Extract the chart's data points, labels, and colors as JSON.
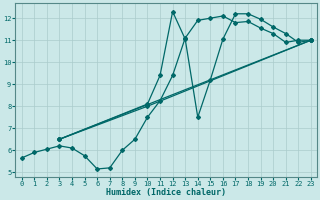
{
  "xlabel": "Humidex (Indice chaleur)",
  "bg_color": "#cbe8e8",
  "grid_color": "#aacccc",
  "line_color": "#006868",
  "xlim": [
    -0.5,
    23.5
  ],
  "ylim": [
    4.8,
    12.7
  ],
  "xticks": [
    0,
    1,
    2,
    3,
    4,
    5,
    6,
    7,
    8,
    9,
    10,
    11,
    12,
    13,
    14,
    15,
    16,
    17,
    18,
    19,
    20,
    21,
    22,
    23
  ],
  "yticks": [
    5,
    6,
    7,
    8,
    9,
    10,
    11,
    12
  ],
  "line1_x": [
    0,
    1,
    2,
    3,
    4,
    5,
    6,
    7,
    8,
    9,
    10,
    11,
    12,
    13,
    14,
    15,
    16,
    17,
    18,
    19,
    20,
    21,
    22,
    23
  ],
  "line1_y": [
    5.65,
    5.9,
    6.05,
    6.2,
    6.1,
    5.75,
    5.15,
    5.2,
    6.0,
    6.5,
    7.5,
    8.25,
    9.4,
    11.1,
    11.9,
    12.0,
    12.1,
    11.8,
    11.85,
    11.55,
    11.3,
    10.9,
    11.0,
    11.0
  ],
  "line2_x": [
    3,
    10,
    11,
    12,
    13,
    14,
    15,
    16,
    17,
    18,
    19,
    20,
    21,
    22,
    23
  ],
  "line2_y": [
    6.5,
    8.1,
    9.4,
    12.3,
    11.05,
    7.5,
    9.2,
    11.05,
    12.2,
    12.2,
    11.95,
    11.6,
    11.3,
    10.9,
    11.0
  ],
  "line3_x": [
    3,
    23
  ],
  "line3_y": [
    6.5,
    11.0
  ],
  "line4_x": [
    3,
    10,
    23
  ],
  "line4_y": [
    6.5,
    8.0,
    11.0
  ],
  "marker_size": 2,
  "line_width": 0.9
}
